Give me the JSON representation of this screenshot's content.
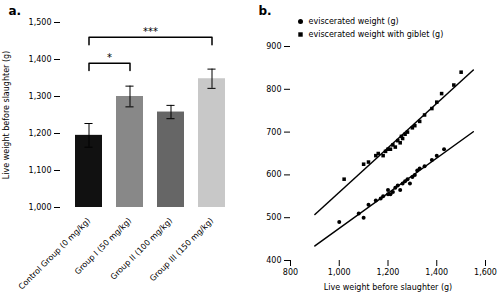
{
  "chart_data": [
    {
      "type": "bar",
      "title": "a.",
      "categories": [
        "Control Group (0 mg/kg)",
        "Group I (50 mg/kg)",
        "Group II (100 mg/kg)",
        "Group III (150 mg/kg)"
      ],
      "values": [
        1195,
        1300,
        1258,
        1348
      ],
      "errors": [
        32,
        28,
        18,
        26
      ],
      "colors": [
        "#111111",
        "#888888",
        "#666666",
        "#c8c8c8"
      ],
      "ylim": [
        1000,
        1500
      ],
      "yticks": [
        1000,
        1100,
        1200,
        1300,
        1400,
        1500
      ],
      "ylabel": "Live weight before slaughter (g)",
      "annotations": [
        {
          "text": "*",
          "from": "Control Group (0 mg/kg)",
          "to": "Group I (50 mg/kg)",
          "y": 1390
        },
        {
          "text": "***",
          "from": "Control Group (0 mg/kg)",
          "to": "Group III (150 mg/kg)",
          "y": 1460
        }
      ]
    },
    {
      "type": "scatter",
      "title": "b.",
      "xlabel": "Live weight before slaughter (g)",
      "xlim": [
        800,
        1600
      ],
      "ylim": [
        400,
        900
      ],
      "xticks": [
        800,
        1000,
        1200,
        1400,
        1600
      ],
      "yticks": [
        400,
        500,
        600,
        700,
        800,
        900
      ],
      "legend": "upper left",
      "series": [
        {
          "name": "eviscerated weight (g)",
          "color": "#000000",
          "marker": "circle",
          "x": [
            1000,
            1080,
            1100,
            1120,
            1150,
            1170,
            1180,
            1200,
            1200,
            1210,
            1220,
            1230,
            1240,
            1250,
            1260,
            1270,
            1280,
            1290,
            1300,
            1310,
            1320,
            1330,
            1350,
            1380,
            1400,
            1430
          ],
          "values": [
            490,
            510,
            500,
            530,
            540,
            545,
            550,
            555,
            565,
            555,
            560,
            570,
            575,
            565,
            580,
            585,
            590,
            580,
            595,
            600,
            610,
            615,
            620,
            635,
            645,
            660
          ],
          "fit": {
            "x": [
              900,
              1550
            ],
            "values": [
              434.01,
              700.81
            ]
          }
        },
        {
          "name": "eviscerated weight with giblet (g)",
          "color": "#000000",
          "marker": "square",
          "x": [
            1020,
            1100,
            1120,
            1150,
            1160,
            1180,
            1190,
            1200,
            1210,
            1220,
            1230,
            1240,
            1250,
            1255,
            1260,
            1270,
            1280,
            1300,
            1310,
            1330,
            1350,
            1380,
            1400,
            1420,
            1470,
            1500
          ],
          "values": [
            590,
            625,
            630,
            645,
            650,
            645,
            655,
            660,
            660,
            670,
            665,
            680,
            675,
            690,
            685,
            695,
            700,
            710,
            715,
            725,
            740,
            755,
            770,
            790,
            810,
            840
          ],
          "fit": {
            "x": [
              900,
              1550
            ],
            "values": [
              507.63,
              845.02
            ]
          }
        }
      ]
    }
  ]
}
